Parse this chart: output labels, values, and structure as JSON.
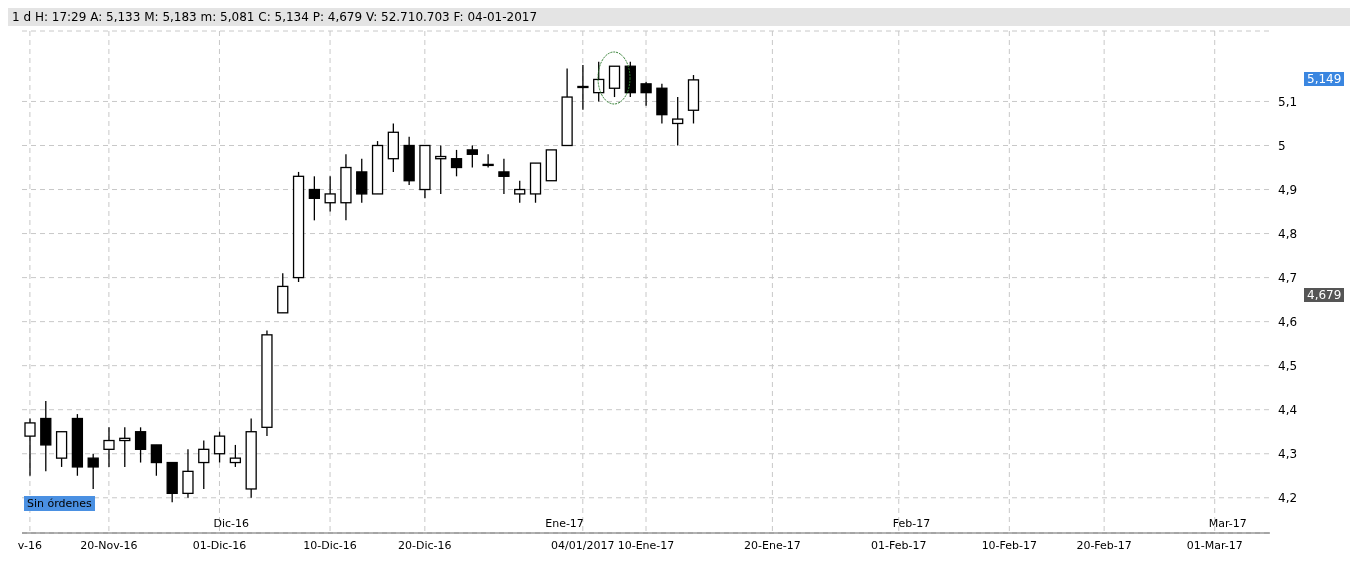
{
  "chart_data": {
    "type": "candlestick",
    "title": "1 d H: 17:29 A: 5,133 M: 5,183 m: 5,081 C: 5,134 P: 4,679 V: 52.710.703 F: 04-01-2017",
    "categories": [
      "v-16",
      null,
      null,
      null,
      null,
      "20-Nov-16",
      null,
      null,
      null,
      null,
      null,
      null,
      "01-Dic-16",
      null,
      null,
      null,
      null,
      null,
      null,
      "10-Dic-16",
      null,
      null,
      null,
      null,
      null,
      "20-Dic-16",
      null,
      null,
      null,
      null,
      null,
      null,
      null,
      null,
      null,
      "04/01/2017",
      null,
      null,
      null,
      "10-Ene-17",
      null,
      null,
      null,
      null,
      null,
      null,
      null,
      "20-Ene-17",
      null,
      null,
      null,
      null,
      null,
      null,
      null,
      "01-Feb-17",
      null,
      null,
      null,
      null,
      null,
      null,
      "10-Feb-17",
      null,
      null,
      null,
      null,
      null,
      "20-Feb-17",
      null,
      null,
      null,
      null,
      null,
      null,
      "01-Mar-17",
      null,
      null,
      null
    ],
    "ohlc": [
      [
        4.34,
        4.38,
        4.25,
        4.37
      ],
      [
        4.38,
        4.42,
        4.26,
        4.32
      ],
      [
        4.29,
        4.35,
        4.27,
        4.35
      ],
      [
        4.38,
        4.39,
        4.25,
        4.27
      ],
      [
        4.29,
        4.3,
        4.22,
        4.27
      ],
      [
        4.31,
        4.36,
        4.27,
        4.33
      ],
      [
        4.33,
        4.36,
        4.27,
        4.335
      ],
      [
        4.35,
        4.36,
        4.28,
        4.31
      ],
      [
        4.32,
        4.32,
        4.25,
        4.28
      ],
      [
        4.28,
        4.28,
        4.19,
        4.21
      ],
      [
        4.21,
        4.31,
        4.2,
        4.26
      ],
      [
        4.28,
        4.33,
        4.22,
        4.31
      ],
      [
        4.3,
        4.35,
        4.28,
        4.34
      ],
      [
        4.28,
        4.32,
        4.27,
        4.29
      ],
      [
        4.22,
        4.38,
        4.2,
        4.35
      ],
      [
        4.36,
        4.58,
        4.34,
        4.57
      ],
      [
        4.62,
        4.71,
        4.62,
        4.68
      ],
      [
        4.7,
        4.94,
        4.69,
        4.93
      ],
      [
        4.9,
        4.93,
        4.83,
        4.88
      ],
      [
        4.87,
        4.93,
        4.85,
        4.89
      ],
      [
        4.87,
        4.98,
        4.83,
        4.95
      ],
      [
        4.94,
        4.97,
        4.87,
        4.89
      ],
      [
        4.89,
        5.01,
        4.89,
        5.0
      ],
      [
        4.97,
        5.05,
        4.94,
        5.03
      ],
      [
        5.0,
        5.02,
        4.91,
        4.92
      ],
      [
        4.9,
        5.0,
        4.88,
        5.0
      ],
      [
        4.97,
        5.0,
        4.89,
        4.975
      ],
      [
        4.97,
        4.99,
        4.93,
        4.95
      ],
      [
        4.99,
        5.0,
        4.95,
        4.98
      ],
      [
        4.957,
        4.98,
        4.95,
        4.957
      ],
      [
        4.94,
        4.97,
        4.89,
        4.93
      ],
      [
        4.89,
        4.92,
        4.87,
        4.9
      ],
      [
        4.89,
        4.96,
        4.87,
        4.96
      ],
      [
        4.92,
        4.99,
        4.92,
        4.99
      ],
      [
        5.0,
        5.175,
        5.0,
        5.11
      ],
      [
        5.133,
        5.183,
        5.081,
        5.134
      ],
      [
        5.12,
        5.19,
        5.1,
        5.15
      ],
      [
        5.13,
        5.18,
        5.11,
        5.18
      ],
      [
        5.18,
        5.19,
        5.11,
        5.12
      ],
      [
        5.14,
        5.145,
        5.09,
        5.12
      ],
      [
        5.13,
        5.14,
        5.05,
        5.07
      ],
      [
        5.05,
        5.11,
        5.0,
        5.06
      ],
      [
        5.08,
        5.16,
        5.05,
        5.149
      ],
      null,
      null,
      null,
      null,
      null,
      null,
      null,
      null,
      null,
      null,
      null,
      null,
      null,
      null,
      null,
      null,
      null,
      null,
      null,
      null,
      null,
      null,
      null,
      null,
      null,
      null,
      null,
      null,
      null,
      null,
      null,
      null,
      null,
      null,
      null,
      null
    ],
    "ylim": [
      4.12,
      5.26
    ],
    "yticks": [
      {
        "value": 4.2,
        "label": "4,2"
      },
      {
        "value": 4.3,
        "label": "4,3"
      },
      {
        "value": 4.4,
        "label": "4,4"
      },
      {
        "value": 4.5,
        "label": "4,5"
      },
      {
        "value": 4.6,
        "label": "4,6"
      },
      {
        "value": 4.7,
        "label": "4,7"
      },
      {
        "value": 4.8,
        "label": "4,8"
      },
      {
        "value": 4.9,
        "label": "4,9"
      },
      5,
      {
        "value": 5.1,
        "label": "5,1"
      }
    ],
    "grid": true,
    "annotations": [
      "Sin órdenes",
      "Dic-16",
      "Ene-17",
      "Feb-17",
      "Mar-17",
      "5,149",
      "4,679"
    ]
  }
}
